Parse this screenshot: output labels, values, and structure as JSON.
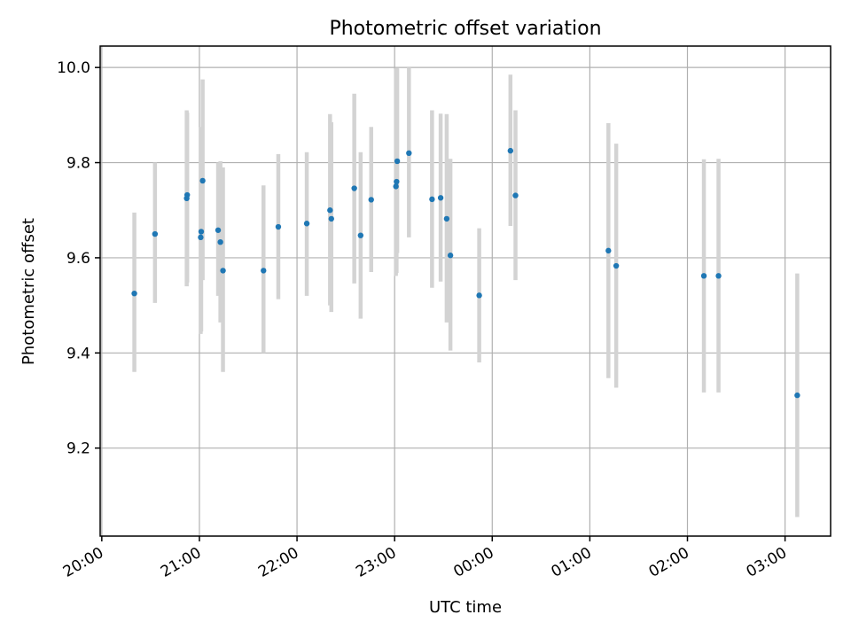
{
  "chart_data": {
    "type": "scatter",
    "title": "Photometric offset variation",
    "xlabel": "UTC time",
    "ylabel": "Photometric offset",
    "x_ticks": [
      {
        "value": 0,
        "label": "20:00"
      },
      {
        "value": 60,
        "label": "21:00"
      },
      {
        "value": 120,
        "label": "22:00"
      },
      {
        "value": 180,
        "label": "23:00"
      },
      {
        "value": 240,
        "label": "00:00"
      },
      {
        "value": 300,
        "label": "01:00"
      },
      {
        "value": 360,
        "label": "02:00"
      },
      {
        "value": 420,
        "label": "03:00"
      }
    ],
    "y_ticks": [
      {
        "value": 9.2,
        "label": "9.2"
      },
      {
        "value": 9.4,
        "label": "9.4"
      },
      {
        "value": 9.6,
        "label": "9.6"
      },
      {
        "value": 9.8,
        "label": "9.8"
      },
      {
        "value": 10.0,
        "label": "10.0"
      }
    ],
    "xlim": [
      -1,
      448
    ],
    "ylim": [
      9.015,
      10.045
    ],
    "grid": true,
    "colors": {
      "point": "#1f77b4",
      "errorbar": "#d3d3d3"
    },
    "points": [
      {
        "x": 20.0,
        "y": 9.525,
        "lo": 9.36,
        "hi": 9.695
      },
      {
        "x": 32.7,
        "y": 9.65,
        "lo": 9.505,
        "hi": 9.8
      },
      {
        "x": 52.2,
        "y": 9.725,
        "lo": 9.54,
        "hi": 9.91
      },
      {
        "x": 52.5,
        "y": 9.732,
        "lo": 9.548,
        "hi": 9.905
      },
      {
        "x": 60.8,
        "y": 9.643,
        "lo": 9.44,
        "hi": 9.865
      },
      {
        "x": 61.1,
        "y": 9.655,
        "lo": 9.445,
        "hi": 9.875
      },
      {
        "x": 62.0,
        "y": 9.762,
        "lo": 9.553,
        "hi": 9.975
      },
      {
        "x": 71.5,
        "y": 9.658,
        "lo": 9.52,
        "hi": 9.8
      },
      {
        "x": 72.9,
        "y": 9.633,
        "lo": 9.464,
        "hi": 9.803
      },
      {
        "x": 74.5,
        "y": 9.573,
        "lo": 9.36,
        "hi": 9.79
      },
      {
        "x": 99.4,
        "y": 9.573,
        "lo": 9.4,
        "hi": 9.752
      },
      {
        "x": 108.5,
        "y": 9.665,
        "lo": 9.513,
        "hi": 9.818
      },
      {
        "x": 126.0,
        "y": 9.672,
        "lo": 9.52,
        "hi": 9.822
      },
      {
        "x": 140.3,
        "y": 9.7,
        "lo": 9.5,
        "hi": 9.902
      },
      {
        "x": 141.1,
        "y": 9.682,
        "lo": 9.486,
        "hi": 9.885
      },
      {
        "x": 155.2,
        "y": 9.746,
        "lo": 9.546,
        "hi": 9.945
      },
      {
        "x": 159.1,
        "y": 9.647,
        "lo": 9.472,
        "hi": 9.822
      },
      {
        "x": 165.6,
        "y": 9.722,
        "lo": 9.57,
        "hi": 9.875
      },
      {
        "x": 180.8,
        "y": 9.75,
        "lo": 9.562,
        "hi": 9.997
      },
      {
        "x": 181.2,
        "y": 9.76,
        "lo": 9.568,
        "hi": 9.999
      },
      {
        "x": 181.6,
        "y": 9.803,
        "lo": 9.61,
        "hi": 9.998
      },
      {
        "x": 188.8,
        "y": 9.82,
        "lo": 9.643,
        "hi": 10.0
      },
      {
        "x": 203.0,
        "y": 9.723,
        "lo": 9.537,
        "hi": 9.91
      },
      {
        "x": 208.3,
        "y": 9.726,
        "lo": 9.55,
        "hi": 9.903
      },
      {
        "x": 212.0,
        "y": 9.682,
        "lo": 9.464,
        "hi": 9.902
      },
      {
        "x": 214.3,
        "y": 9.605,
        "lo": 9.405,
        "hi": 9.808
      },
      {
        "x": 232.0,
        "y": 9.521,
        "lo": 9.38,
        "hi": 9.662
      },
      {
        "x": 251.2,
        "y": 9.825,
        "lo": 9.667,
        "hi": 9.985
      },
      {
        "x": 254.3,
        "y": 9.731,
        "lo": 9.553,
        "hi": 9.91
      },
      {
        "x": 311.4,
        "y": 9.615,
        "lo": 9.347,
        "hi": 9.883
      },
      {
        "x": 316.2,
        "y": 9.583,
        "lo": 9.327,
        "hi": 9.84
      },
      {
        "x": 370.1,
        "y": 9.562,
        "lo": 9.317,
        "hi": 9.807
      },
      {
        "x": 379.1,
        "y": 9.562,
        "lo": 9.317,
        "hi": 9.808
      },
      {
        "x": 427.5,
        "y": 9.311,
        "lo": 9.055,
        "hi": 9.567
      }
    ]
  }
}
